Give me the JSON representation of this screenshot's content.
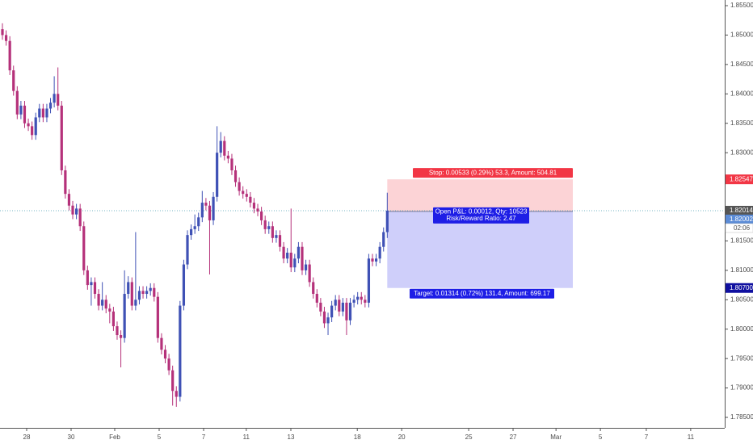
{
  "chart_data": {
    "type": "candlestick",
    "up_color": "#3f51b5",
    "down_color": "#b5317a",
    "open": [
      1.851,
      1.85,
      1.849,
      1.844,
      1.8405,
      1.8365,
      1.838,
      1.835,
      1.8345,
      1.833,
      1.836,
      1.8375,
      1.836,
      1.8375,
      1.8385,
      1.84,
      1.838,
      1.827,
      1.823,
      1.821,
      1.8195,
      1.8205,
      1.8175,
      1.81,
      1.8075,
      1.808,
      1.806,
      1.804,
      1.805,
      1.8035,
      1.803,
      1.8005,
      1.799,
      1.7985,
      1.806,
      1.808,
      1.804,
      1.805,
      1.8065,
      1.806,
      1.8065,
      1.807,
      1.8055,
      1.7985,
      1.7965,
      1.795,
      1.793,
      1.7895,
      1.7885,
      1.804,
      1.811,
      1.816,
      1.817,
      1.8175,
      1.819,
      1.8215,
      1.821,
      1.8185,
      1.8225,
      1.83,
      1.832,
      1.8295,
      1.829,
      1.827,
      1.825,
      1.8235,
      1.823,
      1.8225,
      1.8215,
      1.8205,
      1.82,
      1.8185,
      1.817,
      1.8175,
      1.8155,
      1.816,
      1.814,
      1.812,
      1.813,
      1.8105,
      1.812,
      1.814,
      1.81,
      1.811,
      1.808,
      1.806,
      1.8045,
      1.803,
      1.801,
      1.802,
      1.804,
      1.805,
      1.803,
      1.8045,
      1.8015,
      1.8045,
      1.805,
      1.8055,
      1.805,
      1.8045,
      1.812,
      1.8115,
      1.812,
      1.814,
      1.8165
    ],
    "high": [
      1.852,
      1.8508,
      1.8498,
      1.8448,
      1.8413,
      1.8388,
      1.8388,
      1.8358,
      1.8353,
      1.8368,
      1.8383,
      1.8383,
      1.8383,
      1.8393,
      1.843,
      1.8445,
      1.8388,
      1.8278,
      1.8238,
      1.8218,
      1.8213,
      1.8213,
      1.8183,
      1.8108,
      1.8088,
      1.8088,
      1.8068,
      1.808,
      1.8058,
      1.8043,
      1.8038,
      1.8013,
      1.7998,
      1.81,
      1.809,
      1.8088,
      1.8165,
      1.8073,
      1.8073,
      1.8073,
      1.8078,
      1.8078,
      1.8063,
      1.7993,
      1.7973,
      1.7958,
      1.7938,
      1.7903,
      1.8048,
      1.8118,
      1.8168,
      1.8178,
      1.8195,
      1.8198,
      1.8235,
      1.8223,
      1.8218,
      1.8233,
      1.8345,
      1.8335,
      1.8328,
      1.8303,
      1.8298,
      1.8278,
      1.8258,
      1.8243,
      1.8238,
      1.8233,
      1.8223,
      1.8213,
      1.8208,
      1.8193,
      1.8183,
      1.8183,
      1.8168,
      1.8168,
      1.8148,
      1.8138,
      1.8205,
      1.8128,
      1.8148,
      1.8148,
      1.8118,
      1.8118,
      1.8088,
      1.8068,
      1.8053,
      1.8038,
      1.8028,
      1.8048,
      1.8058,
      1.8058,
      1.8053,
      1.8053,
      1.8053,
      1.8058,
      1.8063,
      1.8063,
      1.8058,
      1.8128,
      1.8128,
      1.8128,
      1.8148,
      1.8173,
      1.8232
    ],
    "low": [
      1.8492,
      1.8482,
      1.8432,
      1.8397,
      1.8357,
      1.8357,
      1.8342,
      1.8337,
      1.8322,
      1.8322,
      1.8352,
      1.8352,
      1.8352,
      1.8367,
      1.8377,
      1.8372,
      1.8262,
      1.8222,
      1.8202,
      1.8187,
      1.8187,
      1.8167,
      1.8092,
      1.8067,
      1.804,
      1.8052,
      1.8032,
      1.8032,
      1.8027,
      1.801,
      1.7997,
      1.7982,
      1.7935,
      1.7977,
      1.8052,
      1.8032,
      1.8032,
      1.8042,
      1.8052,
      1.8052,
      1.8057,
      1.8047,
      1.7977,
      1.7957,
      1.7942,
      1.7922,
      1.787,
      1.7868,
      1.7877,
      1.8032,
      1.8102,
      1.8152,
      1.8162,
      1.8167,
      1.8182,
      1.8202,
      1.8093,
      1.8177,
      1.8217,
      1.8292,
      1.8287,
      1.8282,
      1.8262,
      1.8242,
      1.8227,
      1.8222,
      1.8217,
      1.8207,
      1.8197,
      1.8192,
      1.8177,
      1.8162,
      1.8162,
      1.8147,
      1.8147,
      1.8132,
      1.8112,
      1.8112,
      1.8097,
      1.8097,
      1.8112,
      1.8092,
      1.8092,
      1.8072,
      1.8052,
      1.8037,
      1.8022,
      1.8002,
      1.799,
      1.8012,
      1.8032,
      1.8022,
      1.8022,
      1.799,
      1.8007,
      1.8037,
      1.8042,
      1.8042,
      1.8037,
      1.8037,
      1.8107,
      1.8107,
      1.8112,
      1.8132,
      1.8155
    ],
    "close": [
      1.85,
      1.849,
      1.844,
      1.8405,
      1.8365,
      1.838,
      1.835,
      1.8345,
      1.833,
      1.836,
      1.8375,
      1.836,
      1.8375,
      1.8385,
      1.84,
      1.838,
      1.827,
      1.823,
      1.821,
      1.8195,
      1.8205,
      1.8175,
      1.81,
      1.8075,
      1.808,
      1.806,
      1.804,
      1.805,
      1.8035,
      1.803,
      1.8005,
      1.799,
      1.7985,
      1.806,
      1.808,
      1.804,
      1.805,
      1.8065,
      1.806,
      1.8065,
      1.807,
      1.8055,
      1.7985,
      1.7965,
      1.795,
      1.793,
      1.7895,
      1.7885,
      1.804,
      1.811,
      1.816,
      1.817,
      1.8175,
      1.819,
      1.8215,
      1.821,
      1.8185,
      1.8225,
      1.83,
      1.832,
      1.8295,
      1.829,
      1.827,
      1.825,
      1.8235,
      1.823,
      1.8225,
      1.8215,
      1.8205,
      1.82,
      1.8185,
      1.817,
      1.8175,
      1.8155,
      1.816,
      1.814,
      1.812,
      1.813,
      1.8105,
      1.812,
      1.814,
      1.81,
      1.811,
      1.808,
      1.806,
      1.8045,
      1.803,
      1.801,
      1.802,
      1.804,
      1.805,
      1.803,
      1.8045,
      1.8015,
      1.8045,
      1.805,
      1.8055,
      1.805,
      1.8045,
      1.812,
      1.8115,
      1.812,
      1.814,
      1.8165,
      1.82014
    ],
    "xlim": [
      -0.655,
      195.197
    ],
    "xticks": [
      {
        "value": 6.55,
        "label": "28"
      },
      {
        "value": 18.56,
        "label": "30"
      },
      {
        "value": 30.35,
        "label": "Feb"
      },
      {
        "value": 42.36,
        "label": "5"
      },
      {
        "value": 54.37,
        "label": "7"
      },
      {
        "value": 65.9,
        "label": "11"
      },
      {
        "value": 77.95,
        "label": "13"
      },
      {
        "value": 95.9,
        "label": "18"
      },
      {
        "value": 107.9,
        "label": "20"
      },
      {
        "value": 126.0,
        "label": "25"
      },
      {
        "value": 138.0,
        "label": "27"
      },
      {
        "value": 149.6,
        "label": "Mar"
      },
      {
        "value": 161.6,
        "label": "5"
      },
      {
        "value": 174.0,
        "label": "7"
      },
      {
        "value": 186.0,
        "label": "11"
      }
    ],
    "ylim": [
      1.78322,
      1.85596
    ],
    "yticks": [
      {
        "value": 1.855,
        "label": "1.85500"
      },
      {
        "value": 1.85,
        "label": "1.85000"
      },
      {
        "value": 1.845,
        "label": "1.84500"
      },
      {
        "value": 1.84,
        "label": "1.84000"
      },
      {
        "value": 1.835,
        "label": "1.83500"
      },
      {
        "value": 1.83,
        "label": "1.83000"
      },
      {
        "value": 1.815,
        "label": "1.81500"
      },
      {
        "value": 1.81,
        "label": "1.81000"
      },
      {
        "value": 1.805,
        "label": "1.80500"
      },
      {
        "value": 1.8,
        "label": "1.80000"
      },
      {
        "value": 1.795,
        "label": "1.79500"
      },
      {
        "value": 1.79,
        "label": "1.79000"
      },
      {
        "value": 1.785,
        "label": "1.78500"
      }
    ],
    "last_price": 1.82014,
    "countdown": "02:06",
    "position": {
      "stop": 1.82547,
      "entry": 1.82002,
      "target": {
        "value": 1.807,
        "label": "1.80700"
      },
      "stop_text": "Stop: 0.00533 (0.29%) 53.3, Amount: 504.81",
      "pnl_text": "Open P&L: 0.00012, Qty: 10523",
      "ratio_text": "Risk/Reward Ratio: 2.47",
      "target_text": "Target: 0.01314 (0.72%) 131.4, Amount: 699.17"
    }
  }
}
